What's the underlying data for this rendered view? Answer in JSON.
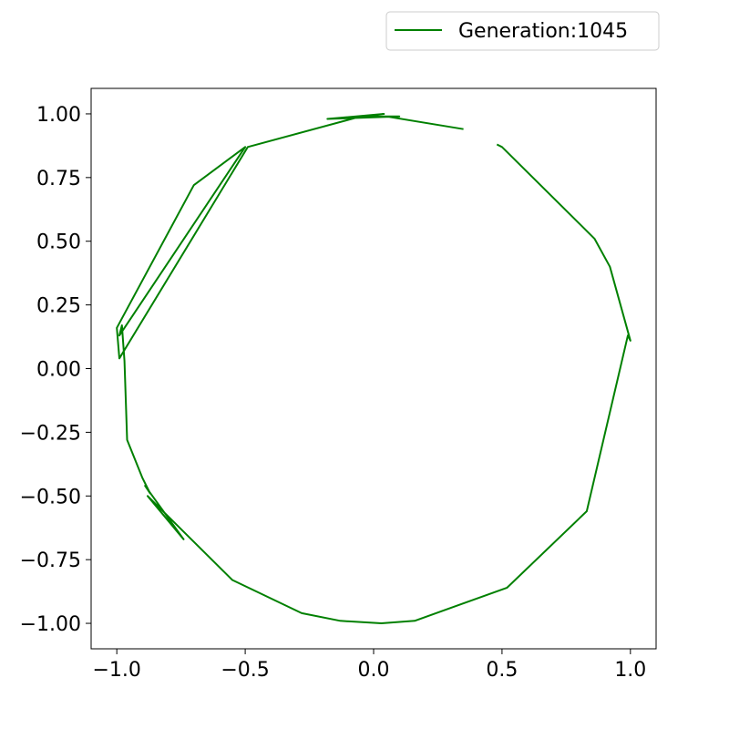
{
  "chart_data": {
    "type": "line",
    "title": "",
    "xlabel": "",
    "ylabel": "",
    "xlim": [
      -1.1,
      1.1
    ],
    "ylim": [
      -1.1,
      1.1
    ],
    "grid": false,
    "legend_placement": "top-right-outside",
    "xticks": [
      -1.0,
      -0.5,
      0.0,
      0.5,
      1.0
    ],
    "yticks": [
      1.0,
      0.75,
      0.5,
      0.25,
      0.0,
      -0.25,
      -0.5,
      -0.75,
      -1.0
    ],
    "xtick_labels": [
      "−1.0",
      "−0.5",
      "0.0",
      "0.5",
      "1.0"
    ],
    "ytick_labels": [
      "1.00",
      "0.75",
      "0.50",
      "0.25",
      "0.00",
      "−0.25",
      "−0.50",
      "−0.75",
      "−1.00"
    ],
    "series": [
      {
        "name": "Generation:1045",
        "color": "#008000",
        "x": [
          0.35,
          0.05,
          -0.05,
          0.1,
          -0.18,
          0.04,
          -0.05,
          -0.49,
          -0.99,
          -1.0,
          -0.7,
          -0.5,
          -0.99,
          -0.98,
          -0.97,
          -0.96,
          -0.9,
          -0.87,
          -0.89,
          -0.74,
          -0.88,
          -0.55,
          -0.28,
          -0.13,
          0.03,
          0.16,
          0.52,
          0.83,
          0.99,
          1.0,
          0.92,
          0.86,
          0.5,
          0.48
        ],
        "y": [
          0.94,
          0.99,
          0.99,
          0.99,
          0.98,
          1.0,
          0.99,
          0.87,
          0.04,
          0.16,
          0.72,
          0.87,
          0.13,
          0.17,
          0.03,
          -0.28,
          -0.43,
          -0.49,
          -0.46,
          -0.67,
          -0.5,
          -0.83,
          -0.96,
          -0.99,
          -1.0,
          -0.99,
          -0.86,
          -0.56,
          0.13,
          0.11,
          0.4,
          0.51,
          0.87,
          0.88
        ]
      }
    ]
  }
}
